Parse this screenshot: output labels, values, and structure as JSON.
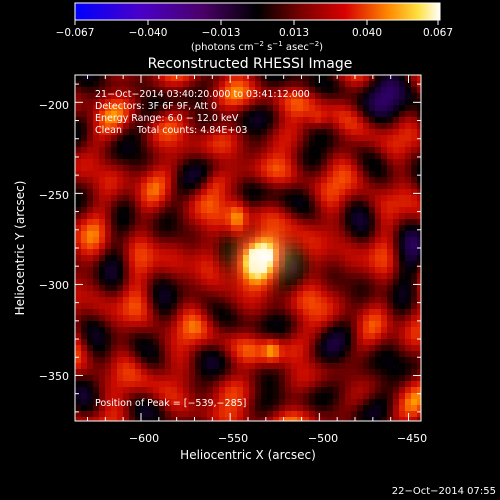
{
  "colorbar": {
    "ticks": [
      "−0.067",
      "−0.040",
      "−0.013",
      "0.013",
      "0.040",
      "0.067"
    ],
    "units_prefix": "(photons cm",
    "units_exp1": "−2",
    "units_mid1": " s",
    "units_exp2": "−1",
    "units_mid2": " asec",
    "units_exp3": "−2",
    "units_suffix": ")"
  },
  "plot": {
    "title": "Reconstructed RHESSI Image",
    "info_lines": [
      "21−Oct−2014 03:40:20.000 to 03:41:12.000",
      "Detectors: 3F 6F 9F, Att 0",
      "Energy Range: 6.0 − 12.0 keV",
      "Clean     Total counts: 4.84E+03"
    ],
    "peak_label": "Position of Peak = [−539,−285]",
    "xlabel": "Heliocentric X (arcsec)",
    "ylabel": "Heliocentric Y (arcsec)",
    "x_ticks": [
      "−600",
      "−550",
      "−500",
      "−450"
    ],
    "y_ticks": [
      "−200",
      "−250",
      "−300",
      "−350"
    ]
  },
  "footer": {
    "timestamp": "22−Oct−2014 07:55"
  },
  "image_data": {
    "type": "heatmap",
    "colormap": "RHESSI signed (blue-purple-black-red-yellow-white)",
    "xlim": [
      -637,
      -443
    ],
    "ylim": [
      -375,
      -185
    ],
    "clim": [
      -0.067,
      0.067
    ],
    "peak": [
      -539,
      -285
    ]
  }
}
